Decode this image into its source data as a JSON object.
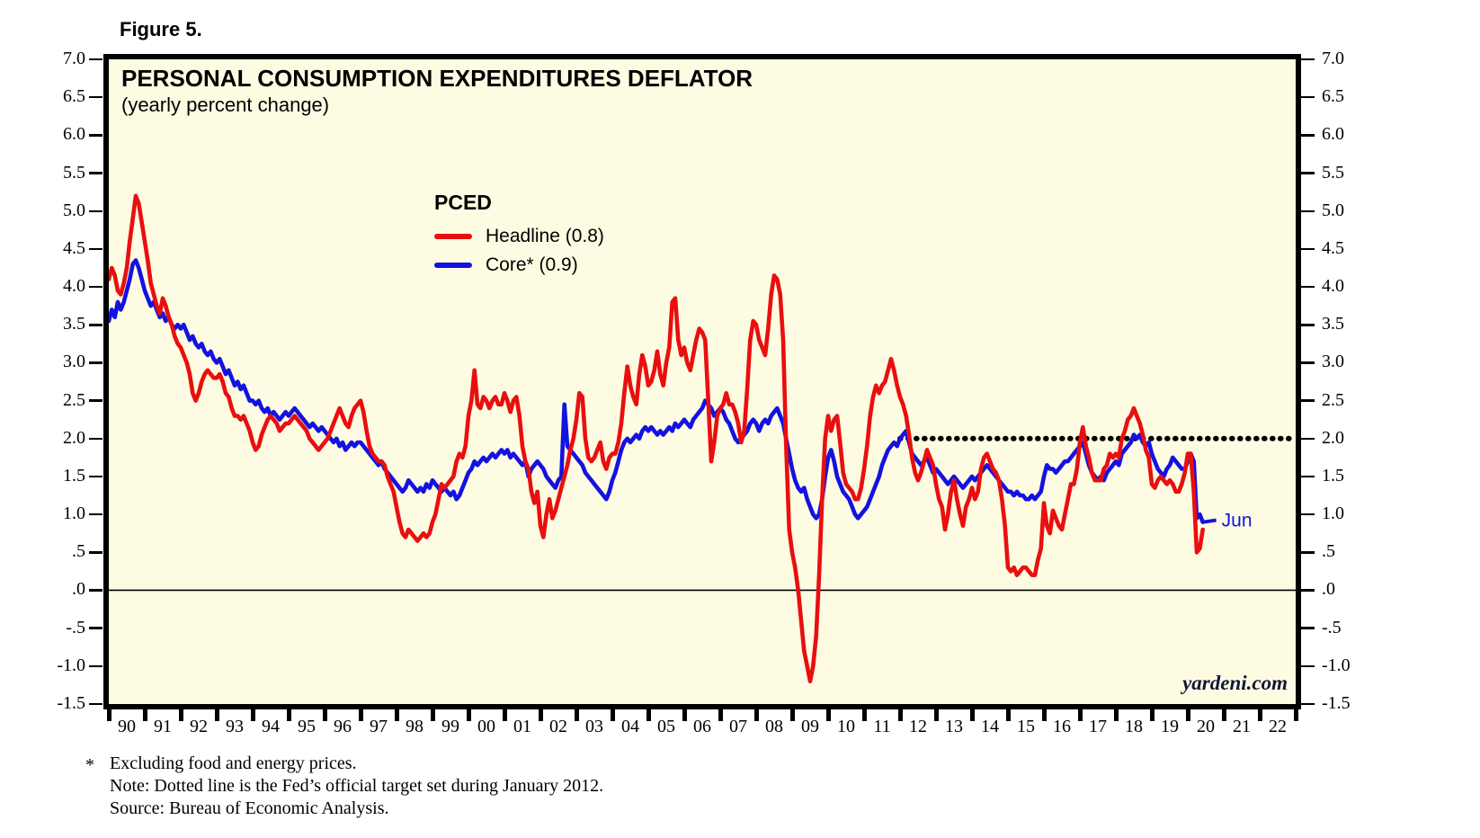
{
  "figure_label": "Figure 5.",
  "chart": {
    "title": "PERSONAL CONSUMPTION EXPENDITURES DEFLATOR",
    "subtitle": "(yearly percent change)",
    "legend": {
      "title": "PCED",
      "items": [
        {
          "label": "Headline (0.8)",
          "color": "#e90f0f"
        },
        {
          "label": "Core* (0.9)",
          "color": "#1412e0"
        }
      ]
    },
    "watermark": "yardeni.com",
    "last_point_label": "Jun",
    "colors": {
      "plot_background": "#fdfce2",
      "axis": "#000000",
      "headline_line": "#e90f0f",
      "core_line": "#1412e0",
      "target_dotted": "#000000",
      "jun_label": "#1412e0"
    }
  },
  "chart_data": {
    "type": "line",
    "frequency": "monthly",
    "x_start_year": 1990,
    "x_end_year": 2023,
    "last_month": "Jun 2020",
    "ylim": [
      -1.5,
      7.0
    ],
    "y_tick_values": [
      7.0,
      6.5,
      6.0,
      5.5,
      5.0,
      4.5,
      4.0,
      3.5,
      3.0,
      2.5,
      2.0,
      1.5,
      1.0,
      0.5,
      0.0,
      -0.5,
      -1.0,
      -1.5
    ],
    "y_tick_labels": [
      "7.0",
      "6.5",
      "6.0",
      "5.5",
      "5.0",
      "4.5",
      "4.0",
      "3.5",
      "3.0",
      "2.5",
      "2.0",
      "1.5",
      "1.0",
      ".5",
      ".0",
      "-.5",
      "-1.0",
      "-1.5"
    ],
    "x_tick_labels": [
      "90",
      "91",
      "92",
      "93",
      "94",
      "95",
      "96",
      "97",
      "98",
      "99",
      "00",
      "01",
      "02",
      "03",
      "04",
      "05",
      "06",
      "07",
      "08",
      "09",
      "10",
      "11",
      "12",
      "13",
      "14",
      "15",
      "16",
      "17",
      "18",
      "19",
      "20",
      "21",
      "22"
    ],
    "zero_line": true,
    "target_line": {
      "value": 2.0,
      "start_year": 2012,
      "style": "dotted",
      "note": "Fed official 2% target"
    },
    "series": [
      {
        "name": "Core (ex food & energy)",
        "color": "#1412e0",
        "latest_value": 0.9,
        "values": [
          3.55,
          3.7,
          3.6,
          3.8,
          3.7,
          3.8,
          3.95,
          4.1,
          4.3,
          4.35,
          4.25,
          4.1,
          3.95,
          3.85,
          3.75,
          3.8,
          3.7,
          3.6,
          3.65,
          3.55,
          3.6,
          3.5,
          3.45,
          3.5,
          3.45,
          3.5,
          3.4,
          3.3,
          3.35,
          3.25,
          3.2,
          3.25,
          3.15,
          3.1,
          3.15,
          3.05,
          3.0,
          3.05,
          2.95,
          2.85,
          2.9,
          2.8,
          2.7,
          2.75,
          2.65,
          2.7,
          2.6,
          2.5,
          2.5,
          2.45,
          2.5,
          2.4,
          2.35,
          2.4,
          2.3,
          2.35,
          2.3,
          2.25,
          2.3,
          2.35,
          2.3,
          2.35,
          2.4,
          2.35,
          2.3,
          2.25,
          2.2,
          2.15,
          2.2,
          2.15,
          2.1,
          2.15,
          2.1,
          2.05,
          2.0,
          1.95,
          2.0,
          1.9,
          1.95,
          1.85,
          1.9,
          1.95,
          1.9,
          1.95,
          1.95,
          1.9,
          1.85,
          1.8,
          1.75,
          1.7,
          1.65,
          1.7,
          1.6,
          1.55,
          1.5,
          1.45,
          1.4,
          1.35,
          1.3,
          1.35,
          1.45,
          1.4,
          1.35,
          1.3,
          1.35,
          1.3,
          1.4,
          1.35,
          1.45,
          1.4,
          1.35,
          1.3,
          1.35,
          1.3,
          1.25,
          1.3,
          1.2,
          1.25,
          1.35,
          1.45,
          1.55,
          1.6,
          1.7,
          1.65,
          1.7,
          1.75,
          1.7,
          1.75,
          1.8,
          1.75,
          1.8,
          1.85,
          1.8,
          1.85,
          1.75,
          1.8,
          1.75,
          1.7,
          1.65,
          1.7,
          1.5,
          1.6,
          1.65,
          1.7,
          1.65,
          1.6,
          1.5,
          1.45,
          1.4,
          1.35,
          1.45,
          1.5,
          2.45,
          1.9,
          1.85,
          1.8,
          1.75,
          1.7,
          1.65,
          1.55,
          1.5,
          1.45,
          1.4,
          1.35,
          1.3,
          1.25,
          1.2,
          1.3,
          1.45,
          1.55,
          1.7,
          1.85,
          1.95,
          2.0,
          1.95,
          2.0,
          2.05,
          2.0,
          2.1,
          2.15,
          2.1,
          2.15,
          2.1,
          2.05,
          2.1,
          2.05,
          2.1,
          2.15,
          2.1,
          2.2,
          2.15,
          2.2,
          2.25,
          2.2,
          2.15,
          2.25,
          2.3,
          2.35,
          2.4,
          2.5,
          2.45,
          2.4,
          2.3,
          2.35,
          2.4,
          2.35,
          2.25,
          2.2,
          2.1,
          2.0,
          1.95,
          2.0,
          2.05,
          2.1,
          2.2,
          2.25,
          2.2,
          2.1,
          2.2,
          2.25,
          2.2,
          2.3,
          2.35,
          2.4,
          2.3,
          2.2,
          2.0,
          1.8,
          1.6,
          1.45,
          1.35,
          1.3,
          1.35,
          1.2,
          1.1,
          1.0,
          0.95,
          1.0,
          1.2,
          1.5,
          1.75,
          1.85,
          1.7,
          1.5,
          1.4,
          1.3,
          1.25,
          1.2,
          1.1,
          1.0,
          0.95,
          1.0,
          1.05,
          1.1,
          1.2,
          1.3,
          1.4,
          1.5,
          1.65,
          1.75,
          1.85,
          1.9,
          1.95,
          1.9,
          2.0,
          2.05,
          2.1,
          1.95,
          1.8,
          1.75,
          1.7,
          1.65,
          1.7,
          1.75,
          1.65,
          1.55,
          1.6,
          1.55,
          1.5,
          1.45,
          1.4,
          1.45,
          1.5,
          1.45,
          1.4,
          1.35,
          1.4,
          1.45,
          1.5,
          1.45,
          1.5,
          1.55,
          1.6,
          1.65,
          1.6,
          1.55,
          1.5,
          1.45,
          1.4,
          1.35,
          1.3,
          1.3,
          1.25,
          1.3,
          1.25,
          1.25,
          1.2,
          1.2,
          1.25,
          1.2,
          1.25,
          1.3,
          1.5,
          1.65,
          1.6,
          1.6,
          1.55,
          1.6,
          1.65,
          1.7,
          1.7,
          1.75,
          1.8,
          1.85,
          1.9,
          1.95,
          1.8,
          1.65,
          1.55,
          1.5,
          1.45,
          1.5,
          1.45,
          1.55,
          1.6,
          1.65,
          1.7,
          1.65,
          1.8,
          1.85,
          1.9,
          1.95,
          2.05,
          2.0,
          2.05,
          1.95,
          1.9,
          1.95,
          1.8,
          1.7,
          1.6,
          1.55,
          1.5,
          1.6,
          1.65,
          1.75,
          1.7,
          1.65,
          1.6,
          1.6,
          1.7,
          1.8,
          1.7,
          0.95,
          1.0,
          0.9
        ]
      },
      {
        "name": "Headline",
        "color": "#e90f0f",
        "latest_value": 0.8,
        "values": [
          4.1,
          4.25,
          4.15,
          3.95,
          3.9,
          4.05,
          4.25,
          4.6,
          4.9,
          5.2,
          5.1,
          4.85,
          4.6,
          4.35,
          4.05,
          3.9,
          3.75,
          3.65,
          3.85,
          3.75,
          3.6,
          3.5,
          3.35,
          3.25,
          3.2,
          3.1,
          3.0,
          2.85,
          2.6,
          2.5,
          2.6,
          2.75,
          2.85,
          2.9,
          2.85,
          2.8,
          2.8,
          2.85,
          2.75,
          2.6,
          2.55,
          2.4,
          2.3,
          2.3,
          2.25,
          2.3,
          2.2,
          2.1,
          1.95,
          1.85,
          1.9,
          2.05,
          2.15,
          2.25,
          2.3,
          2.25,
          2.2,
          2.1,
          2.15,
          2.2,
          2.2,
          2.25,
          2.3,
          2.25,
          2.2,
          2.15,
          2.1,
          2.0,
          1.95,
          1.9,
          1.85,
          1.9,
          1.95,
          2.0,
          2.1,
          2.2,
          2.3,
          2.4,
          2.3,
          2.2,
          2.15,
          2.3,
          2.4,
          2.45,
          2.5,
          2.35,
          2.1,
          1.9,
          1.8,
          1.75,
          1.7,
          1.7,
          1.65,
          1.5,
          1.4,
          1.3,
          1.1,
          0.9,
          0.75,
          0.7,
          0.8,
          0.75,
          0.7,
          0.65,
          0.7,
          0.75,
          0.7,
          0.75,
          0.9,
          1.0,
          1.2,
          1.4,
          1.35,
          1.4,
          1.45,
          1.5,
          1.7,
          1.8,
          1.75,
          1.9,
          2.3,
          2.5,
          2.9,
          2.45,
          2.4,
          2.55,
          2.5,
          2.4,
          2.5,
          2.55,
          2.45,
          2.45,
          2.6,
          2.5,
          2.35,
          2.5,
          2.55,
          2.3,
          1.9,
          1.7,
          1.6,
          1.3,
          1.15,
          1.3,
          0.85,
          0.7,
          1.0,
          1.2,
          0.95,
          1.05,
          1.2,
          1.35,
          1.5,
          1.65,
          1.85,
          2.0,
          2.25,
          2.6,
          2.55,
          2.0,
          1.75,
          1.7,
          1.75,
          1.85,
          1.95,
          1.7,
          1.6,
          1.75,
          1.8,
          1.8,
          1.95,
          2.2,
          2.6,
          2.95,
          2.7,
          2.55,
          2.45,
          2.85,
          3.1,
          2.95,
          2.7,
          2.75,
          2.9,
          3.15,
          2.85,
          2.7,
          3.0,
          3.2,
          3.8,
          3.85,
          3.3,
          3.1,
          3.2,
          3.0,
          2.9,
          3.1,
          3.3,
          3.45,
          3.4,
          3.3,
          2.5,
          1.7,
          1.95,
          2.3,
          2.4,
          2.45,
          2.6,
          2.45,
          2.45,
          2.35,
          2.2,
          1.95,
          2.1,
          2.65,
          3.3,
          3.55,
          3.5,
          3.3,
          3.2,
          3.1,
          3.45,
          3.9,
          4.15,
          4.1,
          3.9,
          3.3,
          1.9,
          0.8,
          0.5,
          0.3,
          0.0,
          -0.4,
          -0.8,
          -1.0,
          -1.2,
          -1.0,
          -0.6,
          0.2,
          1.2,
          2.0,
          2.3,
          2.1,
          2.25,
          2.3,
          1.95,
          1.55,
          1.4,
          1.35,
          1.3,
          1.2,
          1.2,
          1.35,
          1.6,
          1.9,
          2.3,
          2.55,
          2.7,
          2.6,
          2.7,
          2.75,
          2.9,
          3.05,
          2.9,
          2.7,
          2.55,
          2.45,
          2.3,
          2.05,
          1.75,
          1.55,
          1.45,
          1.55,
          1.7,
          1.85,
          1.75,
          1.65,
          1.4,
          1.2,
          1.1,
          0.8,
          1.0,
          1.3,
          1.45,
          1.2,
          1.0,
          0.85,
          1.1,
          1.2,
          1.35,
          1.2,
          1.3,
          1.6,
          1.75,
          1.8,
          1.7,
          1.6,
          1.55,
          1.45,
          1.2,
          0.85,
          0.3,
          0.25,
          0.3,
          0.2,
          0.25,
          0.3,
          0.3,
          0.25,
          0.2,
          0.2,
          0.4,
          0.55,
          1.15,
          0.85,
          0.75,
          1.05,
          0.95,
          0.85,
          0.8,
          1.0,
          1.2,
          1.4,
          1.4,
          1.6,
          1.95,
          2.15,
          1.9,
          1.75,
          1.55,
          1.45,
          1.45,
          1.45,
          1.6,
          1.65,
          1.8,
          1.75,
          1.8,
          1.75,
          2.0,
          2.1,
          2.25,
          2.3,
          2.4,
          2.3,
          2.2,
          2.05,
          1.85,
          1.75,
          1.4,
          1.35,
          1.45,
          1.5,
          1.45,
          1.4,
          1.45,
          1.4,
          1.3,
          1.3,
          1.4,
          1.55,
          1.8,
          1.8,
          1.3,
          0.5,
          0.55,
          0.8
        ]
      }
    ]
  },
  "footnotes": {
    "asterisk": "*",
    "line1": "Excluding food and energy prices.",
    "line2": "Note: Dotted line is the Fed’s official target set during January 2012.",
    "line3": "Source: Bureau of Economic Analysis."
  }
}
